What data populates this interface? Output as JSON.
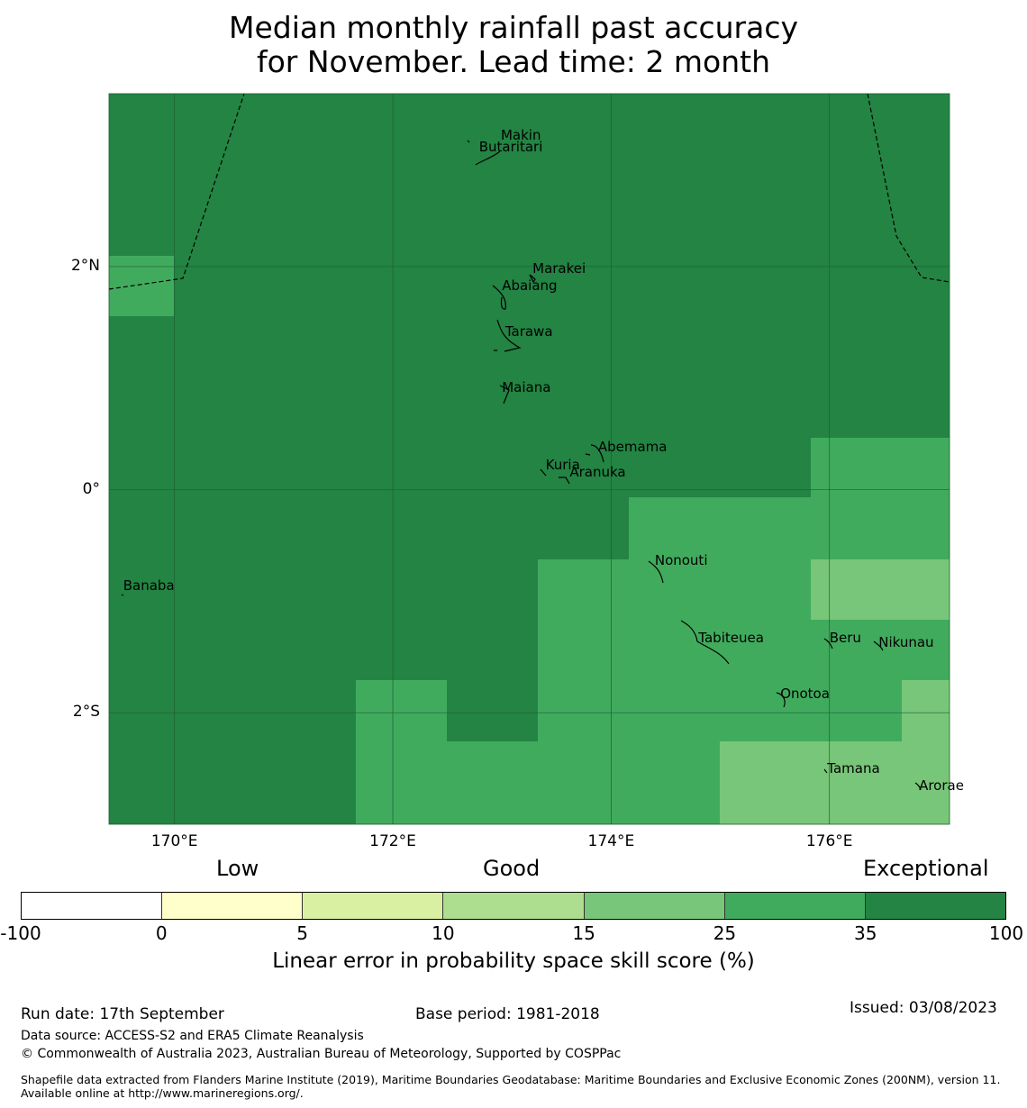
{
  "title": {
    "line1": "Median monthly rainfall past accuracy",
    "line2": "for November. Lead time: 2 month"
  },
  "map": {
    "lon_range": [
      169.4,
      177.1
    ],
    "lat_range": [
      -3.0,
      3.55
    ],
    "grid_step_deg": 0.8333,
    "lat_ticks": [
      {
        "value": 2,
        "label": "2°N"
      },
      {
        "value": 0,
        "label": "0°"
      },
      {
        "value": -2,
        "label": "2°S"
      }
    ],
    "lon_ticks": [
      {
        "value": 170,
        "label": "170°E"
      },
      {
        "value": 172,
        "label": "172°E"
      },
      {
        "value": 174,
        "label": "174°E"
      },
      {
        "value": 176,
        "label": "176°E"
      }
    ],
    "islands": [
      {
        "name": "Makin",
        "lon": 172.99,
        "lat": 3.18
      },
      {
        "name": "Butaritari",
        "lon": 172.79,
        "lat": 3.07
      },
      {
        "name": "Marakei",
        "lon": 173.28,
        "lat": 1.98
      },
      {
        "name": "Abaiang",
        "lon": 173.0,
        "lat": 1.83
      },
      {
        "name": "Tarawa",
        "lon": 173.03,
        "lat": 1.42
      },
      {
        "name": "Maiana",
        "lon": 173.0,
        "lat": 0.92
      },
      {
        "name": "Abemama",
        "lon": 173.88,
        "lat": 0.38
      },
      {
        "name": "Kuria",
        "lon": 173.4,
        "lat": 0.22
      },
      {
        "name": "Aranuka",
        "lon": 173.62,
        "lat": 0.16
      },
      {
        "name": "Nonouti",
        "lon": 174.4,
        "lat": -0.63
      },
      {
        "name": "Banaba",
        "lon": 169.53,
        "lat": -0.86
      },
      {
        "name": "Tabiteuea",
        "lon": 174.8,
        "lat": -1.33
      },
      {
        "name": "Beru",
        "lon": 176.0,
        "lat": -1.33
      },
      {
        "name": "Nikunau",
        "lon": 176.45,
        "lat": -1.37
      },
      {
        "name": "Onotoa",
        "lon": 175.55,
        "lat": -1.83
      },
      {
        "name": "Tamana",
        "lon": 175.98,
        "lat": -2.5
      },
      {
        "name": "Arorae",
        "lon": 176.82,
        "lat": -2.65
      }
    ]
  },
  "colorbar": {
    "categories": [
      "Low",
      "Good",
      "Exceptional"
    ],
    "colors": [
      "#ffffff",
      "#ffffcc",
      "#d9f0a3",
      "#addd8e",
      "#78c679",
      "#41ab5d",
      "#238443"
    ],
    "ticks": [
      "-100",
      "0",
      "5",
      "10",
      "15",
      "25",
      "35",
      "100"
    ],
    "label": "Linear error in probability space skill score (%)"
  },
  "footer": {
    "run_date": "Run date: 17th September",
    "base_period": "Base period: 1981-2018",
    "issued": "Issued: 03/08/2023",
    "data_source": "Data source: ACCESS-S2 and ERA5 Climate Reanalysis",
    "copyright": "© Commonwealth of Australia 2023, Australian Bureau of Meteorology, Supported by COSPPac",
    "shapefile": "Shapefile data extracted from Flanders Marine Institute (2019), Maritime Boundaries Geodatabase: Maritime Boundaries and Exclusive Economic Zones (200NM), version 11. Available online at http://www.marineregions.org/."
  }
}
